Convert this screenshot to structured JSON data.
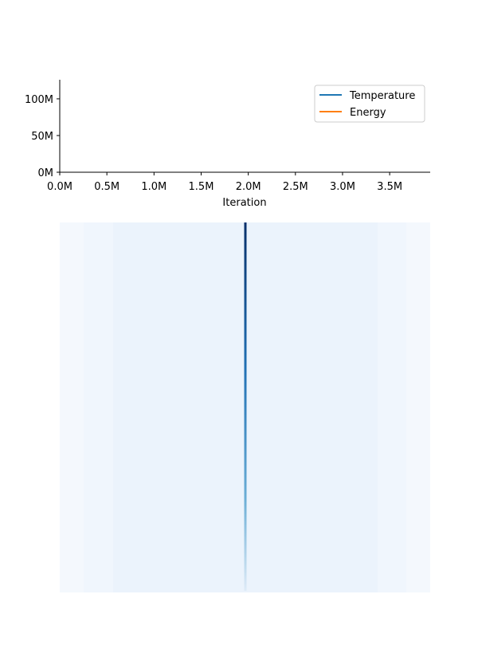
{
  "chart_data": {
    "type": "line",
    "xlabel": "Iteration",
    "x": [],
    "series": [
      {
        "name": "Temperature",
        "color": "#1f77b4",
        "values": []
      },
      {
        "name": "Energy",
        "color": "#ff7f0e",
        "values": []
      }
    ],
    "xlim": [
      0,
      3930000
    ],
    "xticks": [
      {
        "value": 0,
        "label": "0.0M"
      },
      {
        "value": 500000,
        "label": "0.5M"
      },
      {
        "value": 1000000,
        "label": "1.0M"
      },
      {
        "value": 1500000,
        "label": "1.5M"
      },
      {
        "value": 2000000,
        "label": "2.0M"
      },
      {
        "value": 2500000,
        "label": "2.5M"
      },
      {
        "value": 3000000,
        "label": "3.0M"
      },
      {
        "value": 3500000,
        "label": "3.5M"
      }
    ],
    "ylim": [
      0,
      126000000
    ],
    "yticks": [
      {
        "value": 0,
        "label": "0M"
      },
      {
        "value": 50000000,
        "label": "50M"
      },
      {
        "value": 100000000,
        "label": "100M"
      }
    ],
    "legend": "upper right",
    "grid": false
  }
}
